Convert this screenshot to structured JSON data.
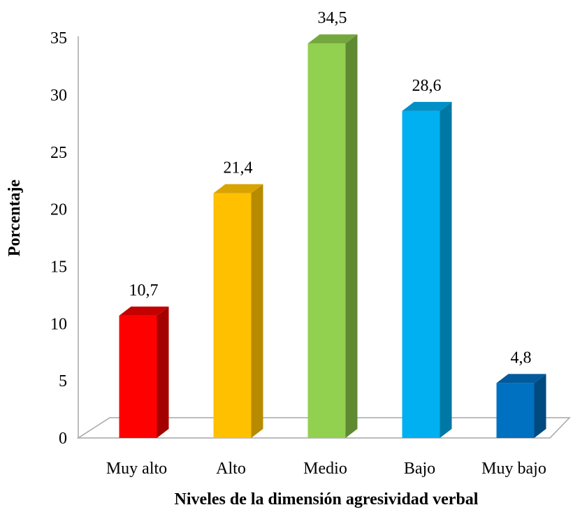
{
  "chart_data": {
    "type": "bar",
    "title": "",
    "xlabel": "Niveles de la dimensión agresividad verbal",
    "ylabel": "Porcentaje",
    "categories": [
      "Muy alto",
      "Alto",
      "Medio",
      "Bajo",
      "Muy bajo"
    ],
    "values": [
      10.7,
      21.4,
      34.5,
      28.6,
      4.8
    ],
    "data_labels": [
      "10,7",
      "21,4",
      "34,5",
      "28,6",
      "4,8"
    ],
    "ylim": [
      0,
      35
    ],
    "yticks": [
      0,
      5,
      10,
      15,
      20,
      25,
      30,
      35
    ],
    "grid": false,
    "legend": "none",
    "style": "3d-column",
    "bar_colors": [
      "#ff0000",
      "#ffc000",
      "#92d050",
      "#00b0f0",
      "#0070c0"
    ],
    "bar_side_colors": [
      "#a50000",
      "#b78a00",
      "#5f8a32",
      "#0078a5",
      "#004a80"
    ],
    "bar_top_colors": [
      "#c40000",
      "#d9a300",
      "#74a83e",
      "#0090c8",
      "#005a9c"
    ],
    "wall_color": "#a6a6a6"
  }
}
